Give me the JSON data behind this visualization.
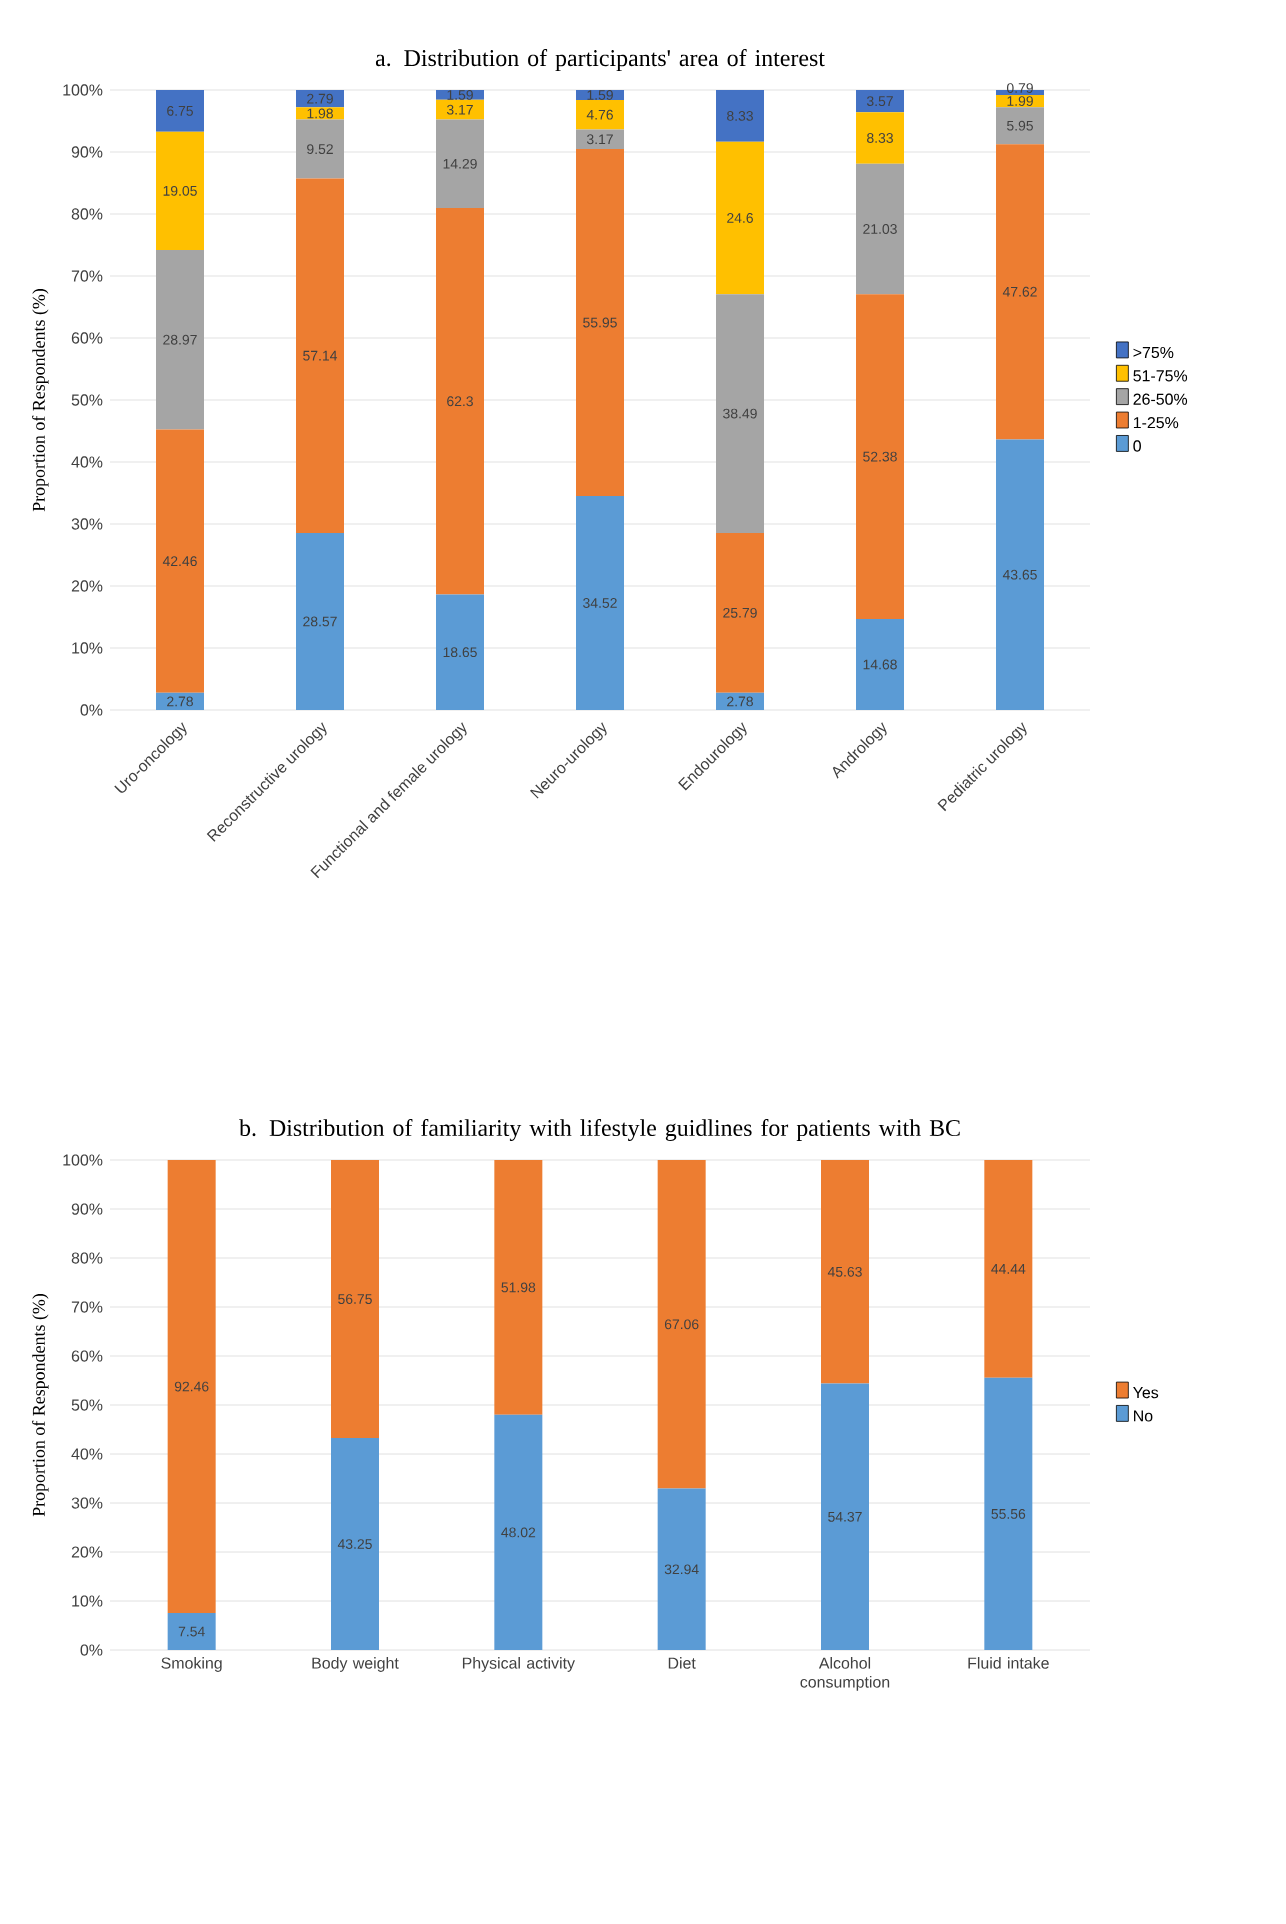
{
  "chart_data": [
    {
      "type": "bar",
      "stacked": true,
      "title": "a. Distribution of participants' area of interest",
      "ylabel": "Proportion of Respondents (%)",
      "categories": [
        "Uro-oncology",
        "Reconstructive urology",
        "Functional and female urology",
        "Neuro-urology",
        "Endourology",
        "Andrology",
        "Pediatric urology"
      ],
      "series": [
        {
          "name": "0",
          "color": "#5b9bd5",
          "values": [
            2.78,
            28.57,
            18.65,
            34.52,
            2.78,
            14.68,
            43.65
          ]
        },
        {
          "name": "1-25%",
          "color": "#ed7d31",
          "values": [
            42.46,
            57.14,
            62.3,
            55.95,
            25.79,
            52.38,
            47.62
          ]
        },
        {
          "name": "26-50%",
          "color": "#a5a5a5",
          "values": [
            28.97,
            9.52,
            14.29,
            3.17,
            38.49,
            21.03,
            5.95
          ]
        },
        {
          "name": "51-75%",
          "color": "#ffc000",
          "values": [
            19.05,
            1.98,
            3.17,
            4.76,
            24.6,
            8.33,
            1.99
          ]
        },
        {
          "name": ">75%",
          "color": "#4472c4",
          "values": [
            6.75,
            2.79,
            1.59,
            1.59,
            8.33,
            3.57,
            0.79
          ]
        }
      ],
      "ylim": [
        0,
        100
      ],
      "yticks": [
        {
          "value": 0,
          "label": "0%"
        },
        {
          "value": 10,
          "label": "10%"
        },
        {
          "value": 20,
          "label": "20%"
        },
        {
          "value": 30,
          "label": "30%"
        },
        {
          "value": 40,
          "label": "40%"
        },
        {
          "value": 50,
          "label": "50%"
        },
        {
          "value": 60,
          "label": "60%"
        },
        {
          "value": 70,
          "label": "70%"
        },
        {
          "value": 80,
          "label": "80%"
        },
        {
          "value": 90,
          "label": "90%"
        },
        {
          "value": 100,
          "label": "100%"
        }
      ],
      "grid": "y",
      "legend": "right",
      "data_labels": true
    },
    {
      "type": "bar",
      "stacked": true,
      "title": "b. Distribution of familiarity with lifestyle guidlines for patients with BC",
      "ylabel": "Proportion of Respondents (%)",
      "categories": [
        "Smoking",
        "Body weight",
        "Physical activity",
        "Diet",
        "Alcohol consumption",
        "Fluid intake"
      ],
      "series": [
        {
          "name": "No",
          "color": "#5b9bd5",
          "values": [
            7.54,
            43.25,
            48.02,
            32.94,
            54.37,
            55.56
          ]
        },
        {
          "name": "Yes",
          "color": "#ed7d31",
          "values": [
            92.46,
            56.75,
            51.98,
            67.06,
            45.63,
            44.44
          ]
        }
      ],
      "ylim": [
        0,
        100
      ],
      "yticks": [
        {
          "value": 0,
          "label": "0%"
        },
        {
          "value": 10,
          "label": "10%"
        },
        {
          "value": 20,
          "label": "20%"
        },
        {
          "value": 30,
          "label": "30%"
        },
        {
          "value": 40,
          "label": "40%"
        },
        {
          "value": 50,
          "label": "50%"
        },
        {
          "value": 60,
          "label": "60%"
        },
        {
          "value": 70,
          "label": "70%"
        },
        {
          "value": 80,
          "label": "80%"
        },
        {
          "value": 90,
          "label": "90%"
        },
        {
          "value": 100,
          "label": "100%"
        }
      ],
      "grid": "y",
      "legend": "right",
      "data_labels": true
    }
  ]
}
